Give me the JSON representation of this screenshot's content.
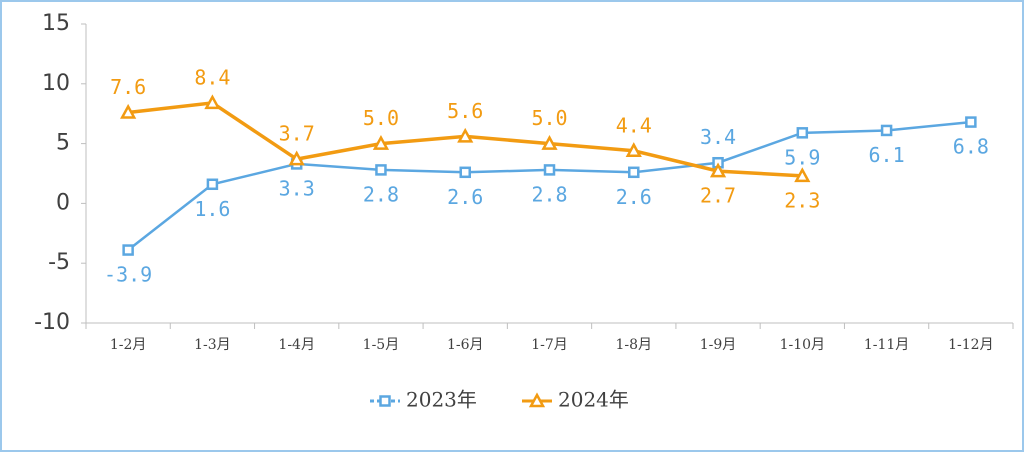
{
  "chart_data": {
    "type": "line",
    "categories": [
      "1-2月",
      "1-3月",
      "1-4月",
      "1-5月",
      "1-6月",
      "1-7月",
      "1-8月",
      "1-9月",
      "1-10月",
      "1-11月",
      "1-12月"
    ],
    "series": [
      {
        "name": "2023年",
        "color": "#5ba7e1",
        "marker": "square",
        "values": [
          -3.9,
          1.6,
          3.3,
          2.8,
          2.6,
          2.8,
          2.6,
          3.4,
          5.9,
          6.1,
          6.8
        ],
        "value_labels": [
          "-3.9",
          "1.6",
          "3.3",
          "2.8",
          "2.6",
          "2.8",
          "2.6",
          "3.4",
          "5.9",
          "6.1",
          "6.8"
        ]
      },
      {
        "name": "2024年",
        "color": "#f29b12",
        "marker": "triangle",
        "values": [
          7.6,
          8.4,
          3.7,
          5,
          5.6,
          5,
          4.4,
          2.7,
          2.3,
          null,
          null
        ],
        "value_labels": [
          "7.6",
          "8.4",
          "3.7",
          "5.0",
          "5.6",
          "5.0",
          "4.4",
          "2.7",
          "2.3",
          null,
          null
        ]
      }
    ],
    "ylim": [
      -10,
      15
    ],
    "yticks": [
      -10,
      -5,
      0,
      5,
      10,
      15
    ],
    "grid": false,
    "legend": "bottom"
  }
}
